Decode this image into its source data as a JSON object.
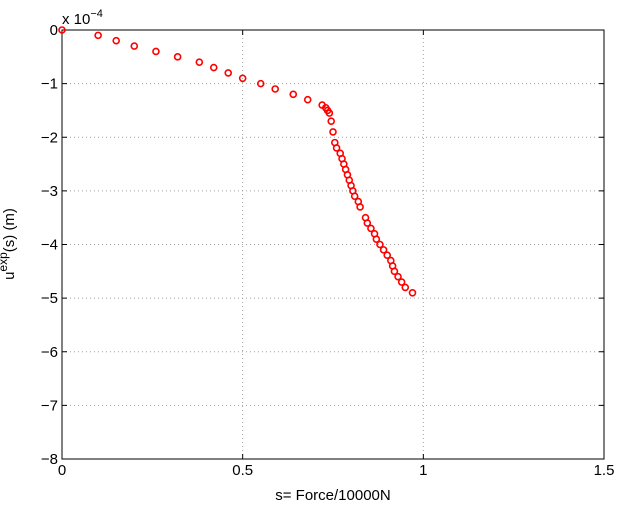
{
  "chart_data": {
    "type": "scatter",
    "xlabel": "s= Force/10000N",
    "ylabel_base": "u",
    "ylabel_sup": "exp",
    "ylabel_rest": "(s)  (m)",
    "y_multiplier_base": "x 10",
    "y_multiplier_exp": "−4",
    "xlim": [
      0,
      1.5
    ],
    "ylim": [
      -8,
      0
    ],
    "x_ticks": [
      0,
      0.5,
      1,
      1.5
    ],
    "x_tick_labels": [
      "0",
      "0.5",
      "1",
      "1.5"
    ],
    "y_ticks": [
      0,
      -1,
      -2,
      -3,
      -4,
      -5,
      -6,
      -7,
      -8
    ],
    "y_tick_labels": [
      "0",
      "−1",
      "−2",
      "−3",
      "−4",
      "−5",
      "−6",
      "−7",
      "−8"
    ],
    "grid": true,
    "marker_color": "#ff0000",
    "series": [
      {
        "x": [
          0,
          0.1,
          0.15,
          0.2,
          0.26,
          0.32,
          0.38,
          0.42,
          0.46,
          0.5,
          0.55,
          0.59,
          0.64,
          0.68,
          0.72,
          0.73,
          0.735,
          0.74,
          0.745,
          0.75,
          0.755,
          0.76,
          0.77,
          0.775,
          0.78,
          0.785,
          0.79,
          0.795,
          0.8,
          0.805,
          0.81,
          0.82,
          0.825,
          0.84,
          0.845,
          0.855,
          0.865,
          0.87,
          0.88,
          0.89,
          0.9,
          0.91,
          0.915,
          0.92,
          0.93,
          0.94,
          0.95,
          0.97
        ],
        "y": [
          0,
          -0.1,
          -0.2,
          -0.3,
          -0.4,
          -0.5,
          -0.6,
          -0.7,
          -0.8,
          -0.9,
          -1.0,
          -1.1,
          -1.2,
          -1.3,
          -1.4,
          -1.45,
          -1.5,
          -1.55,
          -1.7,
          -1.9,
          -2.1,
          -2.2,
          -2.3,
          -2.4,
          -2.5,
          -2.6,
          -2.7,
          -2.8,
          -2.9,
          -3.0,
          -3.1,
          -3.2,
          -3.3,
          -3.5,
          -3.6,
          -3.7,
          -3.8,
          -3.9,
          -4.0,
          -4.1,
          -4.2,
          -4.3,
          -4.4,
          -4.5,
          -4.6,
          -4.7,
          -4.8,
          -4.9
        ]
      }
    ]
  }
}
